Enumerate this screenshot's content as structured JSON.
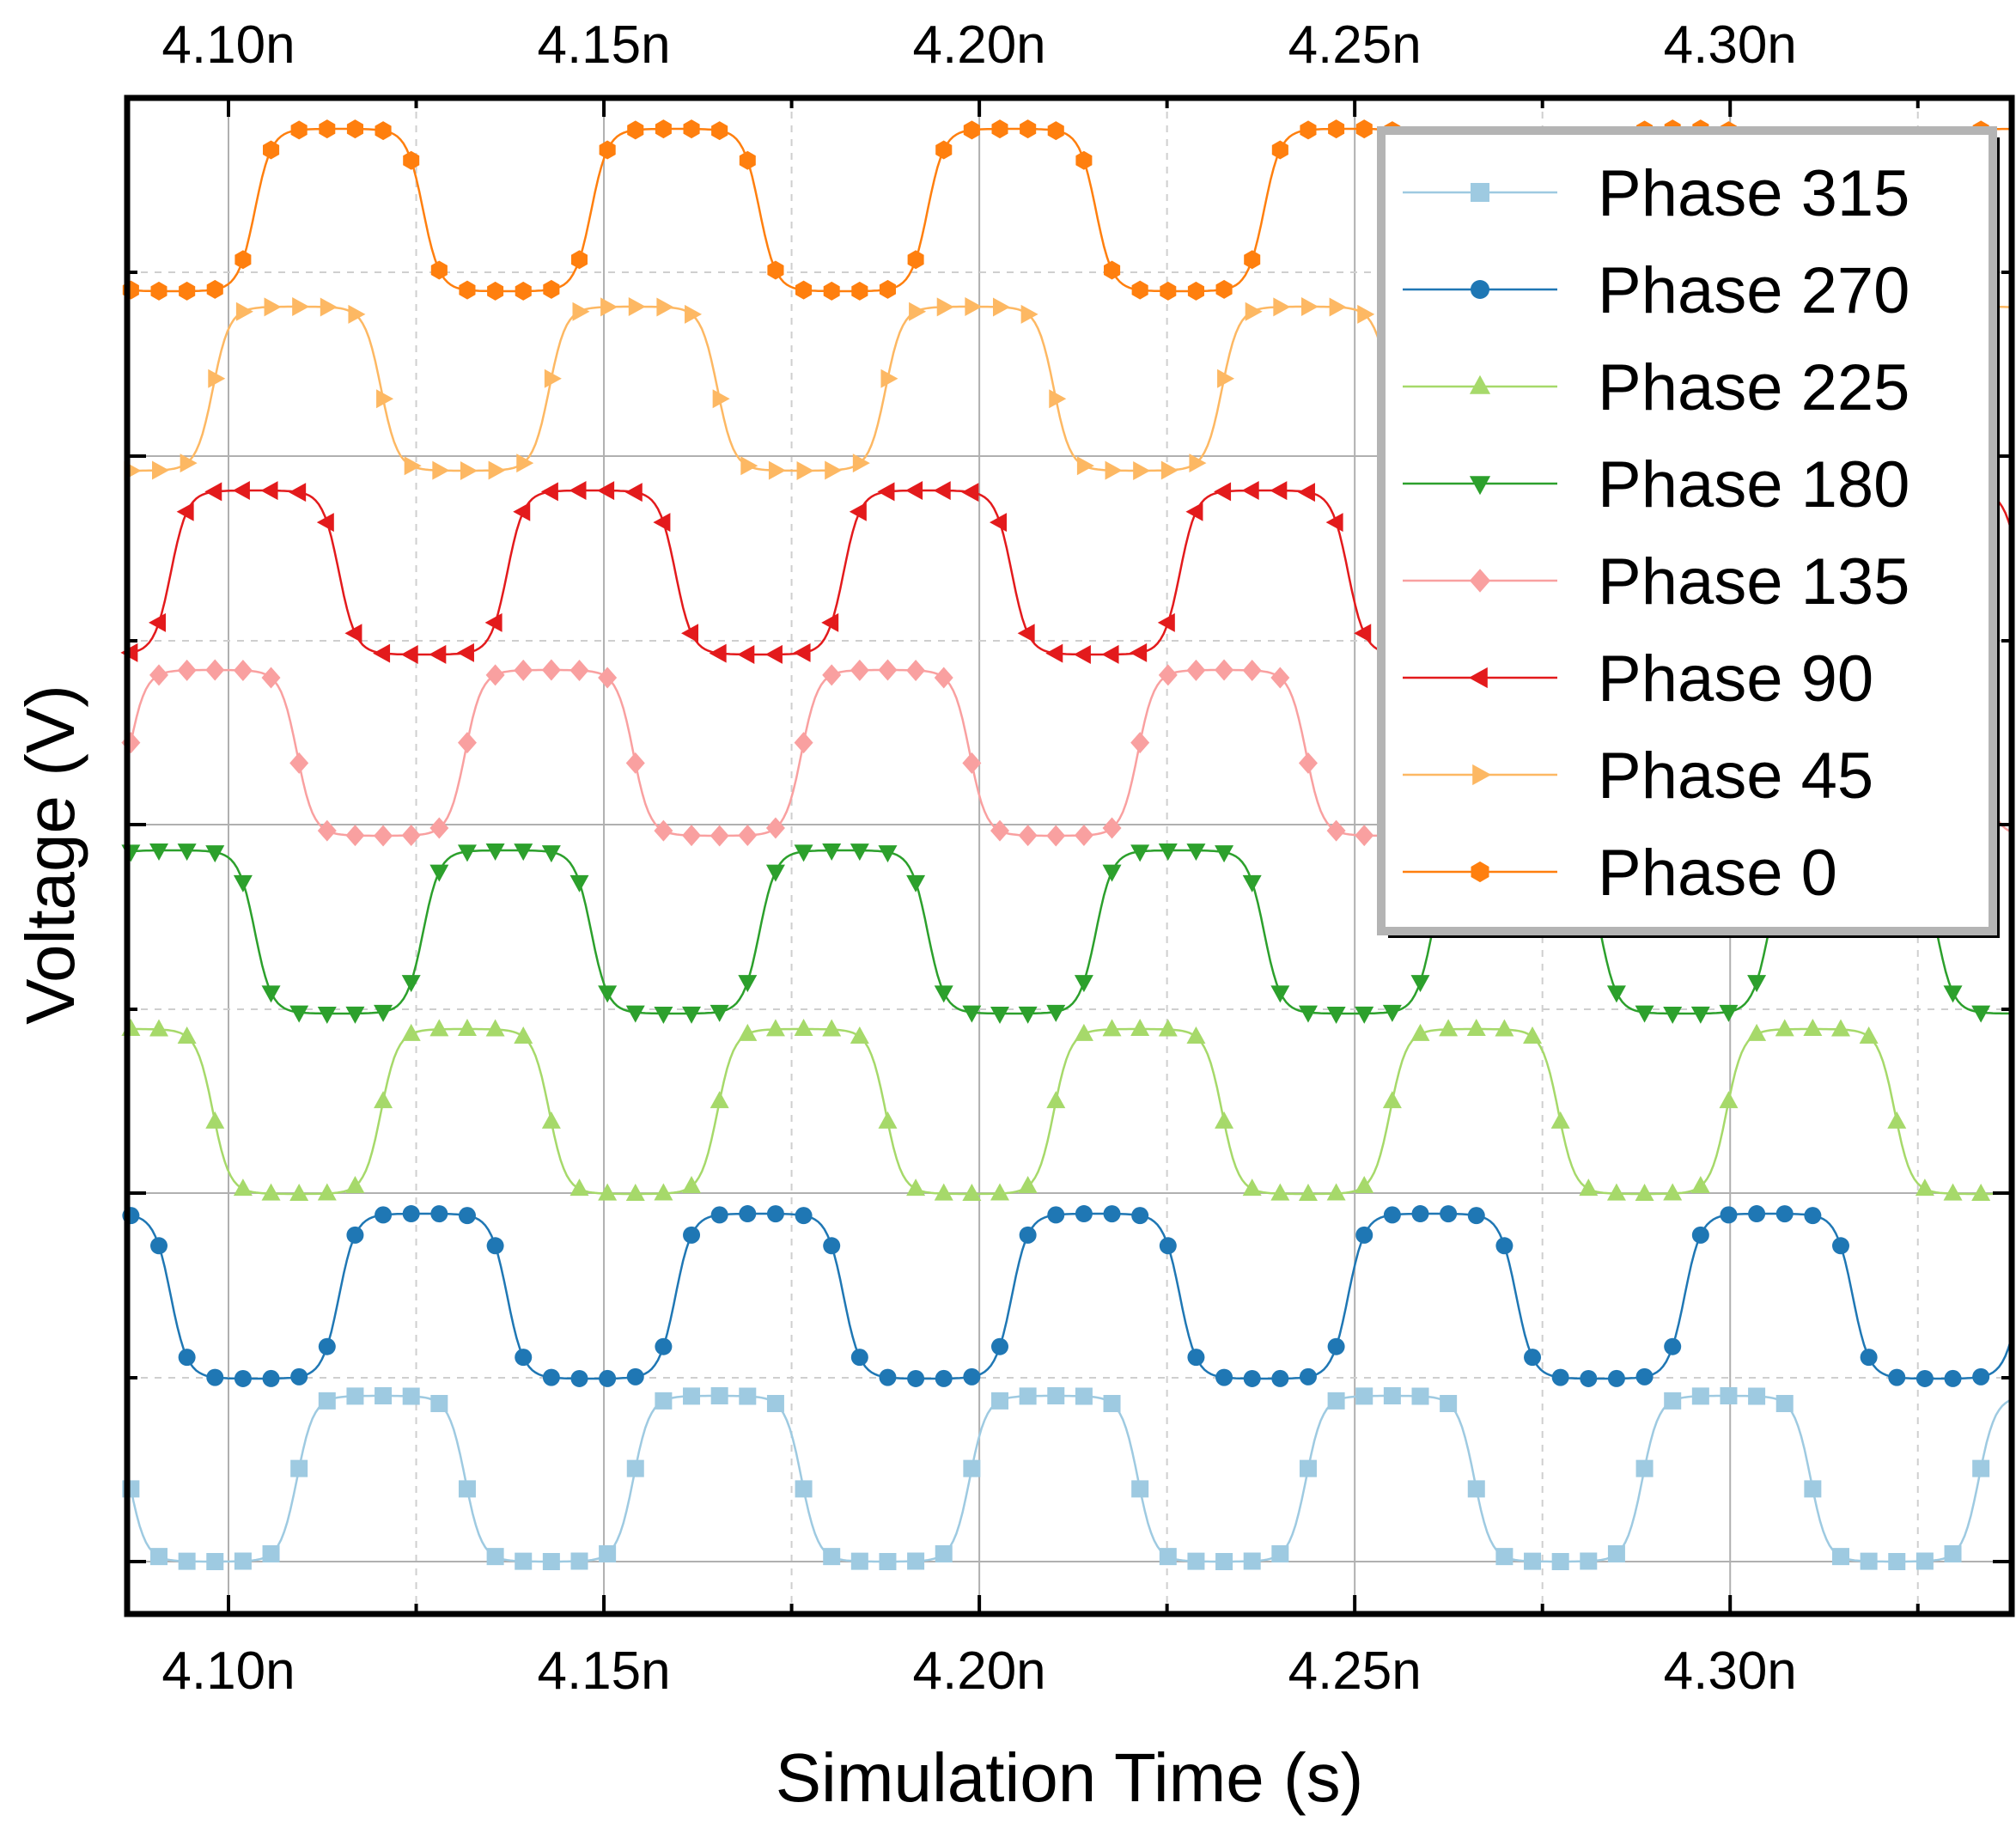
{
  "chart_data": {
    "type": "line",
    "xlabel": "Simulation Time (s)",
    "ylabel": "Voltage (V)",
    "xlim": [
      4.0865,
      4.3375
    ],
    "x_tick_values": [
      4.1,
      4.15,
      4.2,
      4.25,
      4.3
    ],
    "x_tick_labels": [
      "4.10n",
      "4.15n",
      "4.20n",
      "4.25n",
      "4.30n"
    ],
    "x_minor_ticks": [
      4.125,
      4.175,
      4.225,
      4.275,
      4.325
    ],
    "x_unit_suffix": "n",
    "y_ticks_labeled": false,
    "period_ns": 0.0448,
    "grid": true,
    "legend_position": "top-right",
    "series": [
      {
        "name": "Phase 315",
        "color": "#9ecae1",
        "marker": "square",
        "phase_deg": 315
      },
      {
        "name": "Phase 270",
        "color": "#1f77b4",
        "marker": "circle",
        "phase_deg": 270
      },
      {
        "name": "Phase 225",
        "color": "#a6d96a",
        "marker": "triangle-up",
        "phase_deg": 225
      },
      {
        "name": "Phase 180",
        "color": "#2ca02c",
        "marker": "triangle-down",
        "phase_deg": 180
      },
      {
        "name": "Phase 135",
        "color": "#f9a0a0",
        "marker": "diamond",
        "phase_deg": 135
      },
      {
        "name": "Phase 90",
        "color": "#e31a1c",
        "marker": "triangle-left",
        "phase_deg": 90
      },
      {
        "name": "Phase 45",
        "color": "#fdb863",
        "marker": "triangle-right",
        "phase_deg": 45
      },
      {
        "name": "Phase 0",
        "color": "#ff7f0e",
        "marker": "hexagon",
        "phase_deg": 0
      }
    ]
  }
}
